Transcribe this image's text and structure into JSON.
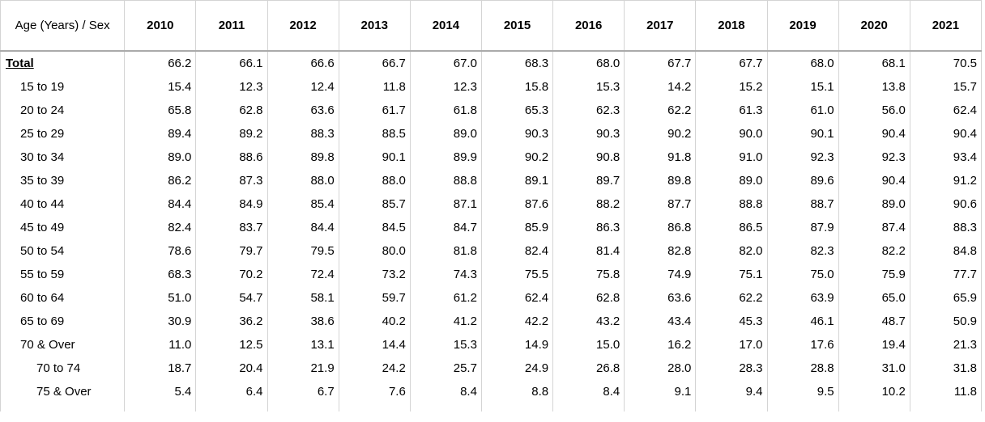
{
  "table": {
    "header": [
      "Age (Years) / Sex",
      "2010",
      "2011",
      "2012",
      "2013",
      "2014",
      "2015",
      "2016",
      "2017",
      "2018",
      "2019",
      "2020",
      "2021"
    ],
    "rows": [
      [
        "Total",
        "66.2",
        "66.1",
        "66.6",
        "66.7",
        "67.0",
        "68.3",
        "68.0",
        "67.7",
        "67.7",
        "68.0",
        "68.1",
        "70.5"
      ],
      [
        "15 to 19",
        "15.4",
        "12.3",
        "12.4",
        "11.8",
        "12.3",
        "15.8",
        "15.3",
        "14.2",
        "15.2",
        "15.1",
        "13.8",
        "15.7"
      ],
      [
        "20 to 24",
        "65.8",
        "62.8",
        "63.6",
        "61.7",
        "61.8",
        "65.3",
        "62.3",
        "62.2",
        "61.3",
        "61.0",
        "56.0",
        "62.4"
      ],
      [
        "25 to 29",
        "89.4",
        "89.2",
        "88.3",
        "88.5",
        "89.0",
        "90.3",
        "90.3",
        "90.2",
        "90.0",
        "90.1",
        "90.4",
        "90.4"
      ],
      [
        "30 to 34",
        "89.0",
        "88.6",
        "89.8",
        "90.1",
        "89.9",
        "90.2",
        "90.8",
        "91.8",
        "91.0",
        "92.3",
        "92.3",
        "93.4"
      ],
      [
        "35 to 39",
        "86.2",
        "87.3",
        "88.0",
        "88.0",
        "88.8",
        "89.1",
        "89.7",
        "89.8",
        "89.0",
        "89.6",
        "90.4",
        "91.2"
      ],
      [
        "40 to 44",
        "84.4",
        "84.9",
        "85.4",
        "85.7",
        "87.1",
        "87.6",
        "88.2",
        "87.7",
        "88.8",
        "88.7",
        "89.0",
        "90.6"
      ],
      [
        "45 to 49",
        "82.4",
        "83.7",
        "84.4",
        "84.5",
        "84.7",
        "85.9",
        "86.3",
        "86.8",
        "86.5",
        "87.9",
        "87.4",
        "88.3"
      ],
      [
        "50 to 54",
        "78.6",
        "79.7",
        "79.5",
        "80.0",
        "81.8",
        "82.4",
        "81.4",
        "82.8",
        "82.0",
        "82.3",
        "82.2",
        "84.8"
      ],
      [
        "55 to 59",
        "68.3",
        "70.2",
        "72.4",
        "73.2",
        "74.3",
        "75.5",
        "75.8",
        "74.9",
        "75.1",
        "75.0",
        "75.9",
        "77.7"
      ],
      [
        "60 to 64",
        "51.0",
        "54.7",
        "58.1",
        "59.7",
        "61.2",
        "62.4",
        "62.8",
        "63.6",
        "62.2",
        "63.9",
        "65.0",
        "65.9"
      ],
      [
        "65 to 69",
        "30.9",
        "36.2",
        "38.6",
        "40.2",
        "41.2",
        "42.2",
        "43.2",
        "43.4",
        "45.3",
        "46.1",
        "48.7",
        "50.9"
      ],
      [
        "70 & Over",
        "11.0",
        "12.5",
        "13.1",
        "14.4",
        "15.3",
        "14.9",
        "15.0",
        "16.2",
        "17.0",
        "17.6",
        "19.4",
        "21.3"
      ],
      [
        "70 to 74",
        "18.7",
        "20.4",
        "21.9",
        "24.2",
        "25.7",
        "24.9",
        "26.8",
        "28.0",
        "28.3",
        "28.8",
        "31.0",
        "31.8"
      ],
      [
        "75 & Over",
        "5.4",
        "6.4",
        "6.7",
        "7.6",
        "8.4",
        "8.8",
        "8.4",
        "9.1",
        "9.4",
        "9.5",
        "10.2",
        "11.8"
      ]
    ]
  }
}
